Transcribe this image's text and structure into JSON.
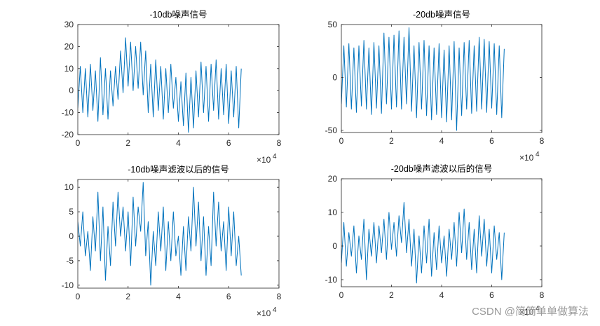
{
  "chart_data": [
    {
      "type": "line",
      "title": "-10db噪声信号",
      "color": "#0072bd",
      "x": [
        0,
        1000,
        2000,
        3000,
        4000,
        5000,
        6000,
        7000,
        8000,
        9000,
        10000,
        11000,
        12000,
        13000,
        14000,
        15000,
        16000,
        17000,
        18000,
        19000,
        20000,
        21000,
        22000,
        23000,
        24000,
        25000,
        26000,
        27000,
        28000,
        29000,
        30000,
        31000,
        32000,
        33000,
        34000,
        35000,
        36000,
        37000,
        38000,
        39000,
        40000,
        41000,
        42000,
        43000,
        44000,
        45000,
        46000,
        47000,
        48000,
        49000,
        50000,
        51000,
        52000,
        53000,
        54000,
        55000,
        56000,
        57000,
        58000,
        59000,
        60000,
        61000,
        62000,
        63000,
        64000,
        65000
      ],
      "values": [
        -8,
        11,
        -10,
        10,
        -12,
        12,
        -9,
        9,
        -14,
        15,
        -11,
        10,
        -13,
        9,
        -7,
        11,
        -4,
        18,
        -1,
        24,
        2,
        22,
        0,
        20,
        1,
        22,
        -2,
        18,
        -10,
        12,
        -12,
        14,
        -9,
        11,
        -13,
        10,
        -10,
        12,
        -8,
        6,
        -14,
        4,
        -16,
        8,
        -19,
        6,
        -17,
        9,
        -12,
        13,
        -10,
        11,
        -14,
        12,
        -9,
        14,
        -13,
        10,
        -11,
        12,
        -15,
        9,
        -12,
        11,
        -17,
        10
      ],
      "xlim": [
        0,
        80000
      ],
      "xticks": [
        0,
        {
          "value": 20000,
          "label": "2"
        },
        {
          "value": 40000,
          "label": "4"
        },
        {
          "value": 60000,
          "label": "6"
        },
        {
          "value": 80000,
          "label": "8"
        }
      ],
      "x_exponent_base": "×10",
      "x_exponent_power": "4",
      "ylim": [
        -20,
        30
      ],
      "yticks": [
        -20,
        -10,
        0,
        10,
        20,
        30
      ]
    },
    {
      "type": "line",
      "title": "-20db噪声信号",
      "color": "#0072bd",
      "x": [
        0,
        1000,
        2000,
        3000,
        4000,
        5000,
        6000,
        7000,
        8000,
        9000,
        10000,
        11000,
        12000,
        13000,
        14000,
        15000,
        16000,
        17000,
        18000,
        19000,
        20000,
        21000,
        22000,
        23000,
        24000,
        25000,
        26000,
        27000,
        28000,
        29000,
        30000,
        31000,
        32000,
        33000,
        34000,
        35000,
        36000,
        37000,
        38000,
        39000,
        40000,
        41000,
        42000,
        43000,
        44000,
        45000,
        46000,
        47000,
        48000,
        49000,
        50000,
        51000,
        52000,
        53000,
        54000,
        55000,
        56000,
        57000,
        58000,
        59000,
        60000,
        61000,
        62000,
        63000,
        64000,
        65000
      ],
      "values": [
        -25,
        30,
        -28,
        32,
        -30,
        28,
        -33,
        30,
        -27,
        35,
        -30,
        28,
        -35,
        33,
        -29,
        30,
        -34,
        42,
        -25,
        38,
        -30,
        40,
        -28,
        44,
        -30,
        38,
        -25,
        47,
        -32,
        30,
        -38,
        33,
        -30,
        35,
        -36,
        30,
        -40,
        28,
        -35,
        32,
        -38,
        26,
        -42,
        30,
        -40,
        34,
        -50,
        28,
        -36,
        33,
        -30,
        35,
        -34,
        30,
        -32,
        38,
        -30,
        36,
        -33,
        34,
        -29,
        32,
        -35,
        30,
        -38,
        27
      ],
      "xlim": [
        0,
        80000
      ],
      "xticks": [
        0,
        {
          "value": 20000,
          "label": "2"
        },
        {
          "value": 40000,
          "label": "4"
        },
        {
          "value": 60000,
          "label": "6"
        },
        {
          "value": 80000,
          "label": "8"
        }
      ],
      "x_exponent_base": "×10",
      "x_exponent_power": "4",
      "ylim": [
        -52,
        50
      ],
      "yticks": [
        -50,
        0,
        50
      ]
    },
    {
      "type": "line",
      "title": "-10db噪声滤波以后的信号",
      "color": "#0072bd",
      "x": [
        0,
        1000,
        2000,
        3000,
        4000,
        5000,
        6000,
        7000,
        8000,
        9000,
        10000,
        11000,
        12000,
        13000,
        14000,
        15000,
        16000,
        17000,
        18000,
        19000,
        20000,
        21000,
        22000,
        23000,
        24000,
        25000,
        26000,
        27000,
        28000,
        29000,
        30000,
        31000,
        32000,
        33000,
        34000,
        35000,
        36000,
        37000,
        38000,
        39000,
        40000,
        41000,
        42000,
        43000,
        44000,
        45000,
        46000,
        47000,
        48000,
        49000,
        50000,
        51000,
        52000,
        53000,
        54000,
        55000,
        56000,
        57000,
        58000,
        59000,
        60000,
        61000,
        62000,
        63000,
        64000,
        65000
      ],
      "values": [
        3,
        -2,
        5,
        -4,
        1,
        -7,
        4,
        -3,
        9,
        -5,
        6,
        -9,
        2,
        -6,
        7,
        -2,
        9,
        0,
        6,
        -3,
        5,
        -6,
        8,
        -2,
        6,
        1,
        11,
        -4,
        3,
        -10,
        1,
        -6,
        5,
        -3,
        6,
        -7,
        3,
        -5,
        5,
        -4,
        0,
        -8,
        2,
        -7,
        4,
        -3,
        10,
        -2,
        7,
        -5,
        4,
        -8,
        2,
        -6,
        9,
        -2,
        7,
        -3,
        3,
        -7,
        6,
        -4,
        5,
        -6,
        0,
        -8
      ],
      "xlim": [
        0,
        80000
      ],
      "xticks": [
        0,
        {
          "value": 20000,
          "label": "2"
        },
        {
          "value": 40000,
          "label": "4"
        },
        {
          "value": 60000,
          "label": "6"
        },
        {
          "value": 80000,
          "label": "8"
        }
      ],
      "x_exponent_base": "×10",
      "x_exponent_power": "4",
      "ylim": [
        -10.6,
        11.6
      ],
      "yticks": [
        -10,
        -5,
        0,
        5,
        10
      ]
    },
    {
      "type": "line",
      "title": "-20db噪声滤波以后的信号",
      "color": "#0072bd",
      "x": [
        0,
        1000,
        2000,
        3000,
        4000,
        5000,
        6000,
        7000,
        8000,
        9000,
        10000,
        11000,
        12000,
        13000,
        14000,
        15000,
        16000,
        17000,
        18000,
        19000,
        20000,
        21000,
        22000,
        23000,
        24000,
        25000,
        26000,
        27000,
        28000,
        29000,
        30000,
        31000,
        32000,
        33000,
        34000,
        35000,
        36000,
        37000,
        38000,
        39000,
        40000,
        41000,
        42000,
        43000,
        44000,
        45000,
        46000,
        47000,
        48000,
        49000,
        50000,
        51000,
        52000,
        53000,
        54000,
        55000,
        56000,
        57000,
        58000,
        59000,
        60000,
        61000,
        62000,
        63000,
        64000,
        65000
      ],
      "values": [
        -5,
        7,
        -6,
        4,
        -3,
        6,
        -8,
        3,
        -4,
        8,
        -10,
        5,
        -3,
        7,
        -5,
        6,
        -2,
        8,
        -4,
        10,
        -1,
        7,
        -3,
        9,
        1,
        13,
        -2,
        8,
        -6,
        5,
        -11,
        3,
        -8,
        6,
        -5,
        8,
        -9,
        4,
        -7,
        6,
        -5,
        3,
        -9,
        5,
        -4,
        7,
        -6,
        10,
        -2,
        11,
        -4,
        7,
        -7,
        5,
        -8,
        9,
        -3,
        8,
        -6,
        5,
        -8,
        6,
        -4,
        4,
        -10,
        4
      ],
      "xlim": [
        0,
        80000
      ],
      "xticks": [
        0,
        {
          "value": 20000,
          "label": "2"
        },
        {
          "value": 40000,
          "label": "4"
        },
        {
          "value": 60000,
          "label": "6"
        },
        {
          "value": 80000,
          "label": "8"
        }
      ],
      "x_exponent_base": "×10",
      "x_exponent_power": "4",
      "ylim": [
        -12.1,
        20
      ],
      "yticks": [
        -10,
        0,
        10,
        20
      ]
    }
  ],
  "watermark": "CSDN @简简单单做算法"
}
